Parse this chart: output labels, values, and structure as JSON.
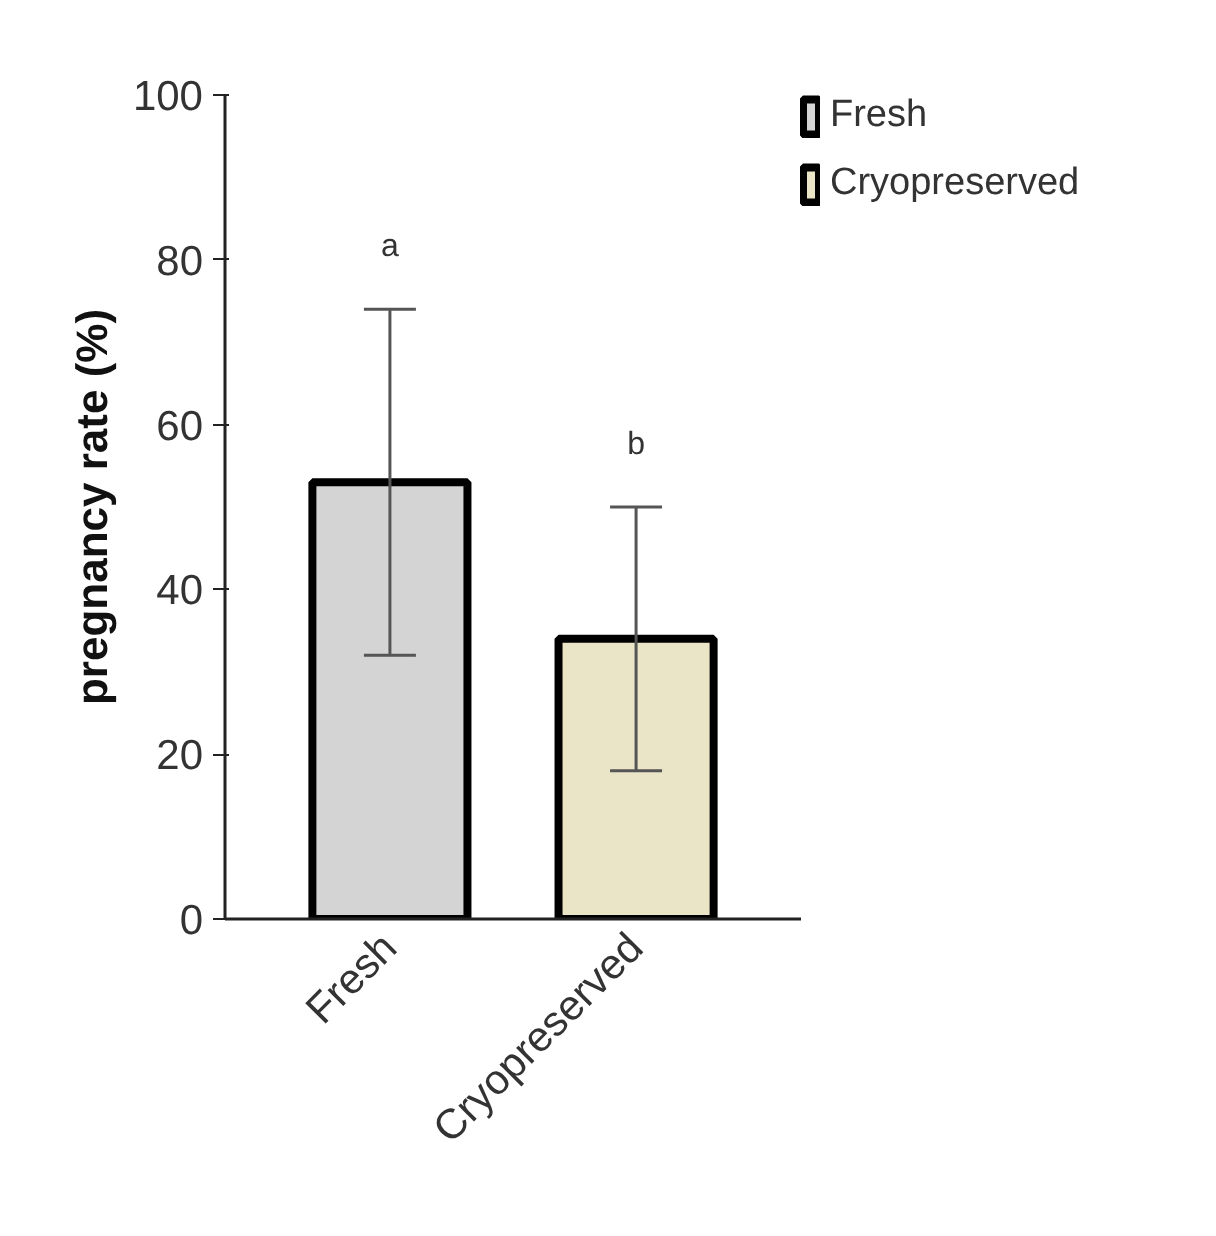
{
  "chart_data": {
    "type": "bar",
    "ylabel": "pregnancy rate (%)",
    "categories": [
      "Fresh",
      "Cryopreserved"
    ],
    "series": [
      {
        "name": "Fresh",
        "color": "#d4d4d4",
        "values": [
          53,
          null
        ],
        "errors": [
          21,
          null
        ]
      },
      {
        "name": "Cryopreserved",
        "color": "#ebe5c8",
        "values": [
          null,
          34
        ],
        "errors": [
          null,
          16
        ]
      }
    ],
    "ylim": [
      0,
      100
    ],
    "yticks": [
      0,
      20,
      40,
      60,
      80,
      100
    ],
    "annotations": [
      "a",
      "b"
    ],
    "grid": false,
    "legend": "top right"
  }
}
